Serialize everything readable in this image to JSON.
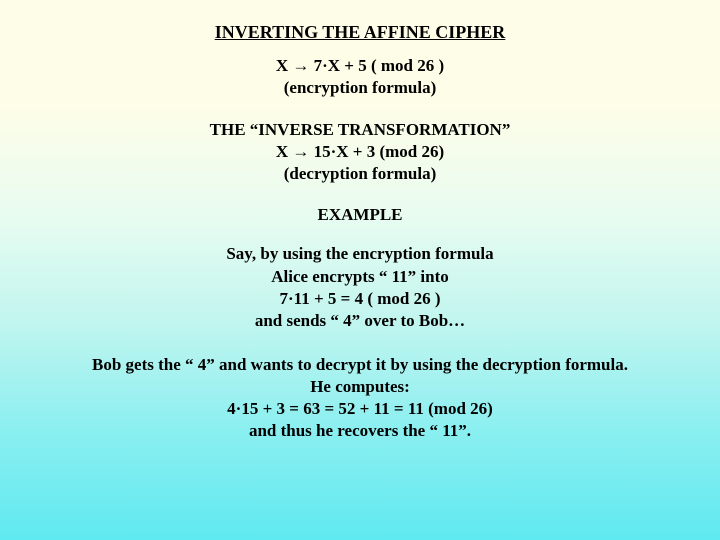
{
  "title": "INVERTING THE AFFINE CIPHER",
  "enc": {
    "formula": "X  →  7·X + 5  ( mod 26 )",
    "label": "(encryption formula)"
  },
  "inv": {
    "heading": "THE “INVERSE TRANSFORMATION”",
    "formula": "X → 15·X + 3 (mod 26)",
    "label": "(decryption formula)"
  },
  "example": {
    "heading": "EXAMPLE",
    "p1l1": "Say, by using the encryption formula",
    "p1l2": "Alice encrypts “ 11” into",
    "p1l3": "7·11 + 5 = 4 ( mod 26 )",
    "p1l4": "and sends “ 4” over to Bob…",
    "p2l1": "Bob gets the “ 4” and wants to decrypt it by using the decryption formula.",
    "p2l2": "He computes:",
    "p2l3": "4·15 + 3 =  63 = 52 + 11 = 11 (mod 26)",
    "p2l4": "and thus he recovers the “ 11”."
  }
}
